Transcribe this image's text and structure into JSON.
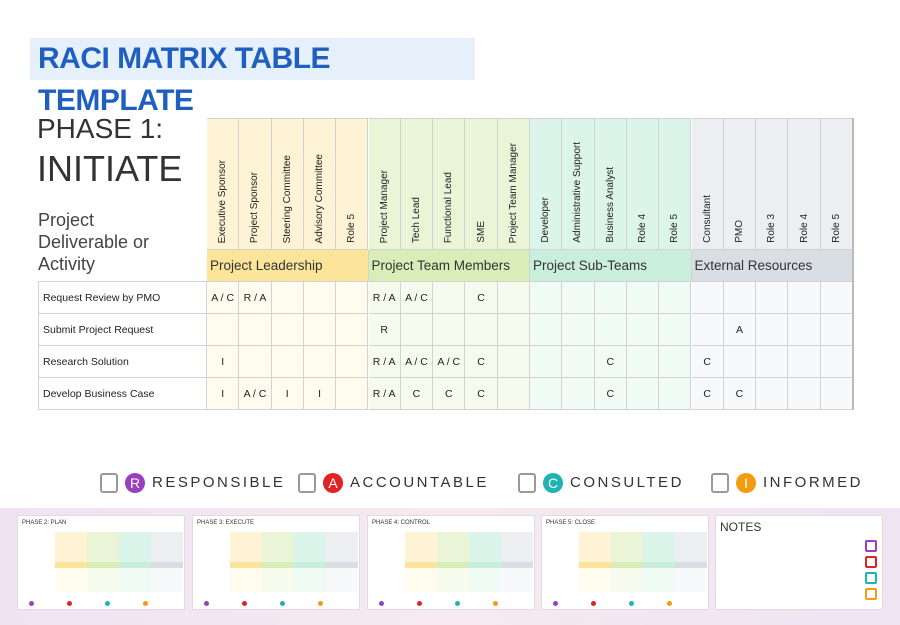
{
  "header": {
    "title": "RACI MATRIX TABLE TEMPLATE"
  },
  "phase": {
    "label": "PHASE 1:",
    "name": "INITIATE"
  },
  "table": {
    "corner": "Project Deliverable or Activity",
    "groups": [
      {
        "name": "Project Leadership",
        "roles": [
          "Executive Sponsor",
          "Project Sponsor",
          "Steering Committee",
          "Advisory Committee",
          "Role 5"
        ]
      },
      {
        "name": "Project Team Members",
        "roles": [
          "Project Manager",
          "Tech Lead",
          "Functional Lead",
          "SME",
          "Project Team Manager"
        ]
      },
      {
        "name": "Project Sub-Teams",
        "roles": [
          "Developer",
          "Administrative Support",
          "Business Analyst",
          "Role 4",
          "Role 5"
        ]
      },
      {
        "name": "External Resources",
        "roles": [
          "Consultant",
          "PMO",
          "Role 3",
          "Role 4",
          "Role 5"
        ]
      }
    ],
    "rows": [
      {
        "activity": "Request Review by PMO",
        "cells": [
          "A / C",
          "R / A",
          null,
          null,
          null,
          "R / A",
          "A / C",
          null,
          "C",
          null,
          null,
          null,
          null,
          null,
          null,
          null,
          null,
          null,
          null,
          null
        ]
      },
      {
        "activity": "Submit Project Request",
        "cells": [
          null,
          null,
          null,
          null,
          null,
          "R",
          null,
          null,
          null,
          null,
          null,
          null,
          null,
          null,
          null,
          null,
          "A",
          null,
          null,
          null
        ]
      },
      {
        "activity": "Research Solution",
        "cells": [
          "I",
          null,
          null,
          null,
          null,
          "R / A",
          "A / C",
          "A / C",
          "C",
          null,
          null,
          null,
          "C",
          null,
          null,
          "C",
          null,
          null,
          null,
          null
        ]
      },
      {
        "activity": "Develop Business Case",
        "cells": [
          "I",
          "A / C",
          "I",
          "I",
          null,
          "R / A",
          "C",
          "C",
          "C",
          null,
          null,
          null,
          "C",
          null,
          null,
          "C",
          "C",
          null,
          null,
          null
        ]
      }
    ]
  },
  "legend": [
    {
      "letter": "R",
      "label": "RESPONSIBLE"
    },
    {
      "letter": "A",
      "label": "ACCOUNTABLE"
    },
    {
      "letter": "C",
      "label": "CONSULTED"
    },
    {
      "letter": "I",
      "label": "INFORMED"
    }
  ],
  "thumbnails": [
    {
      "title": "PHASE 2: PLAN"
    },
    {
      "title": "PHASE 3: EXECUTE"
    },
    {
      "title": "PHASE 4: CONTROL"
    },
    {
      "title": "PHASE 5: CLOSE"
    },
    {
      "title": "NOTES"
    }
  ]
}
